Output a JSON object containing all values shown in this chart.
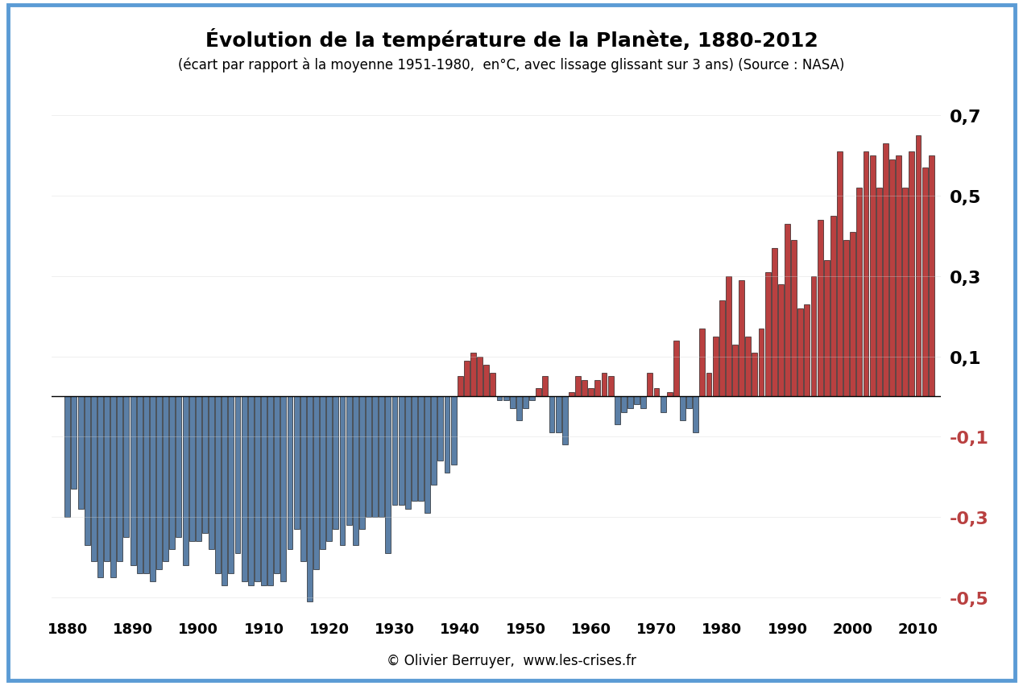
{
  "title": "Évolution de la température de la Planète, 1880-2012",
  "subtitle": "(écart par rapport à la moyenne 1951-1980,  en°C, avec lissage glissant sur 3 ans) (Source : NASA)",
  "footer": "© Olivier Berruyer,  www.les-crises.fr",
  "ylim": [
    -0.55,
    0.75
  ],
  "yticks_black": [
    0.7,
    0.5,
    0.3,
    0.1
  ],
  "yticks_red": [
    -0.1,
    -0.3,
    -0.5
  ],
  "background_color": "#ffffff",
  "border_color": "#5b9bd5",
  "bar_color_positive": "#b94040",
  "bar_color_negative": "#5b7fa6",
  "years": [
    1880,
    1881,
    1882,
    1883,
    1884,
    1885,
    1886,
    1887,
    1888,
    1889,
    1890,
    1891,
    1892,
    1893,
    1894,
    1895,
    1896,
    1897,
    1898,
    1899,
    1900,
    1901,
    1902,
    1903,
    1904,
    1905,
    1906,
    1907,
    1908,
    1909,
    1910,
    1911,
    1912,
    1913,
    1914,
    1915,
    1916,
    1917,
    1918,
    1919,
    1920,
    1921,
    1922,
    1923,
    1924,
    1925,
    1926,
    1927,
    1928,
    1929,
    1930,
    1931,
    1932,
    1933,
    1934,
    1935,
    1936,
    1937,
    1938,
    1939,
    1940,
    1941,
    1942,
    1943,
    1944,
    1945,
    1946,
    1947,
    1948,
    1949,
    1950,
    1951,
    1952,
    1953,
    1954,
    1955,
    1956,
    1957,
    1958,
    1959,
    1960,
    1961,
    1962,
    1963,
    1964,
    1965,
    1966,
    1967,
    1968,
    1969,
    1970,
    1971,
    1972,
    1973,
    1974,
    1975,
    1976,
    1977,
    1978,
    1979,
    1980,
    1981,
    1982,
    1983,
    1984,
    1985,
    1986,
    1987,
    1988,
    1989,
    1990,
    1991,
    1992,
    1993,
    1994,
    1995,
    1996,
    1997,
    1998,
    1999,
    2000,
    2001,
    2002,
    2003,
    2004,
    2005,
    2006,
    2007,
    2008,
    2009,
    2010,
    2011,
    2012
  ],
  "values": [
    -0.3,
    -0.23,
    -0.28,
    -0.37,
    -0.41,
    -0.45,
    -0.41,
    -0.45,
    -0.41,
    -0.35,
    -0.42,
    -0.44,
    -0.44,
    -0.46,
    -0.43,
    -0.41,
    -0.38,
    -0.35,
    -0.42,
    -0.36,
    -0.36,
    -0.34,
    -0.38,
    -0.44,
    -0.47,
    -0.44,
    -0.39,
    -0.46,
    -0.47,
    -0.46,
    -0.47,
    -0.47,
    -0.44,
    -0.46,
    -0.38,
    -0.33,
    -0.41,
    -0.51,
    -0.43,
    -0.38,
    -0.36,
    -0.33,
    -0.37,
    -0.32,
    -0.37,
    -0.33,
    -0.3,
    -0.3,
    -0.3,
    -0.39,
    -0.27,
    -0.27,
    -0.28,
    -0.26,
    -0.26,
    -0.29,
    -0.22,
    -0.16,
    -0.19,
    -0.17,
    0.05,
    0.09,
    0.11,
    0.1,
    0.08,
    0.06,
    -0.01,
    -0.01,
    -0.03,
    -0.06,
    -0.03,
    -0.01,
    0.02,
    0.05,
    -0.09,
    -0.09,
    -0.12,
    0.01,
    0.05,
    0.04,
    0.02,
    0.04,
    0.06,
    0.05,
    -0.07,
    -0.04,
    -0.03,
    -0.02,
    -0.03,
    0.06,
    0.02,
    -0.04,
    0.01,
    0.14,
    -0.06,
    -0.03,
    -0.09,
    0.17,
    0.06,
    0.15,
    0.24,
    0.3,
    0.13,
    0.29,
    0.15,
    0.11,
    0.17,
    0.31,
    0.37,
    0.28,
    0.43,
    0.39,
    0.22,
    0.23,
    0.3,
    0.44,
    0.34,
    0.45,
    0.61,
    0.39,
    0.41,
    0.52,
    0.61,
    0.6,
    0.52,
    0.63,
    0.59,
    0.6,
    0.52,
    0.61,
    0.65,
    0.57,
    0.6
  ]
}
